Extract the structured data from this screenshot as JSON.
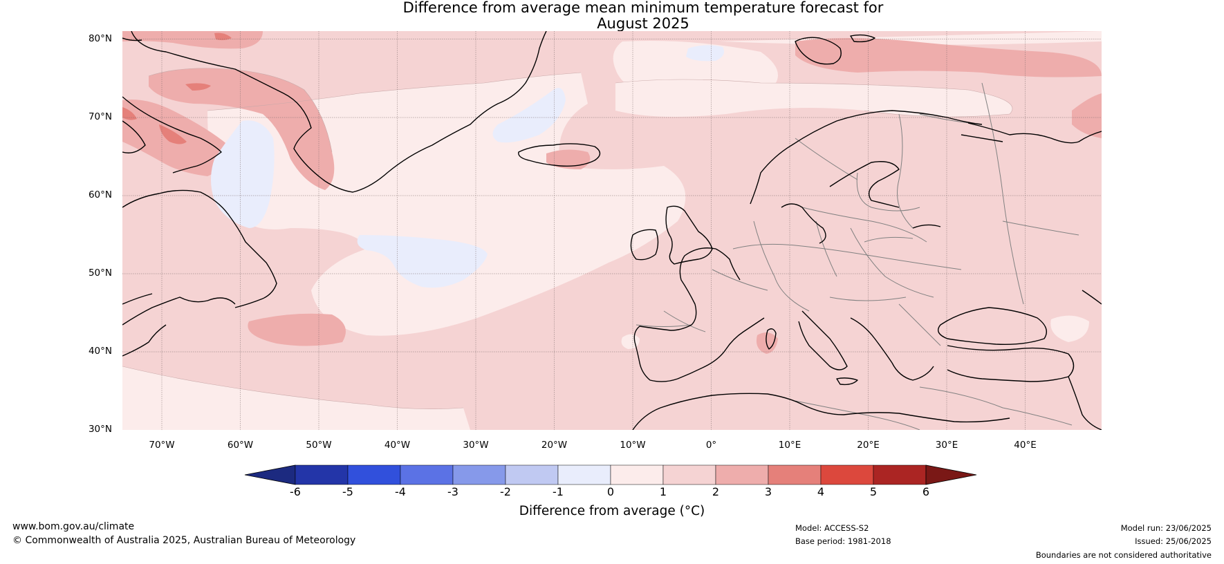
{
  "title": {
    "line1": "Difference from average mean minimum temperature forecast for",
    "line2": "August 2025"
  },
  "map": {
    "lat_labels": [
      "80°N",
      "70°N",
      "60°N",
      "50°N",
      "40°N",
      "30°N"
    ],
    "lon_labels": [
      "70°W",
      "60°W",
      "50°W",
      "40°W",
      "30°W",
      "20°W",
      "10°W",
      "0°",
      "10°E",
      "20°E",
      "30°E",
      "40°E"
    ]
  },
  "colorbar": {
    "ticks": [
      "-6",
      "-5",
      "-4",
      "-3",
      "-2",
      "-1",
      "0",
      "1",
      "2",
      "3",
      "4",
      "5",
      "6"
    ],
    "colors": [
      "#2335a8",
      "#3150dc",
      "#5b72e5",
      "#8699ea",
      "#c0c9f2",
      "#e9edfc",
      "#fceceb",
      "#f5d3d3",
      "#eeadac",
      "#e5807a",
      "#dc483d",
      "#ab2523"
    ],
    "under_color": "#1c2a80",
    "over_color": "#7a1816",
    "label": "Difference from average (°C)"
  },
  "footer": {
    "url": "www.bom.gov.au/climate",
    "copyright": "© Commonwealth of Australia 2025, Australian Bureau of Meteorology",
    "model": "Model: ACCESS-S2",
    "base_period": "Base period: 1981-2018",
    "model_run": "Model run: 23/06/2025",
    "issued": "Issued: 25/06/2025",
    "disclaimer": "Boundaries are not considered authoritative"
  }
}
